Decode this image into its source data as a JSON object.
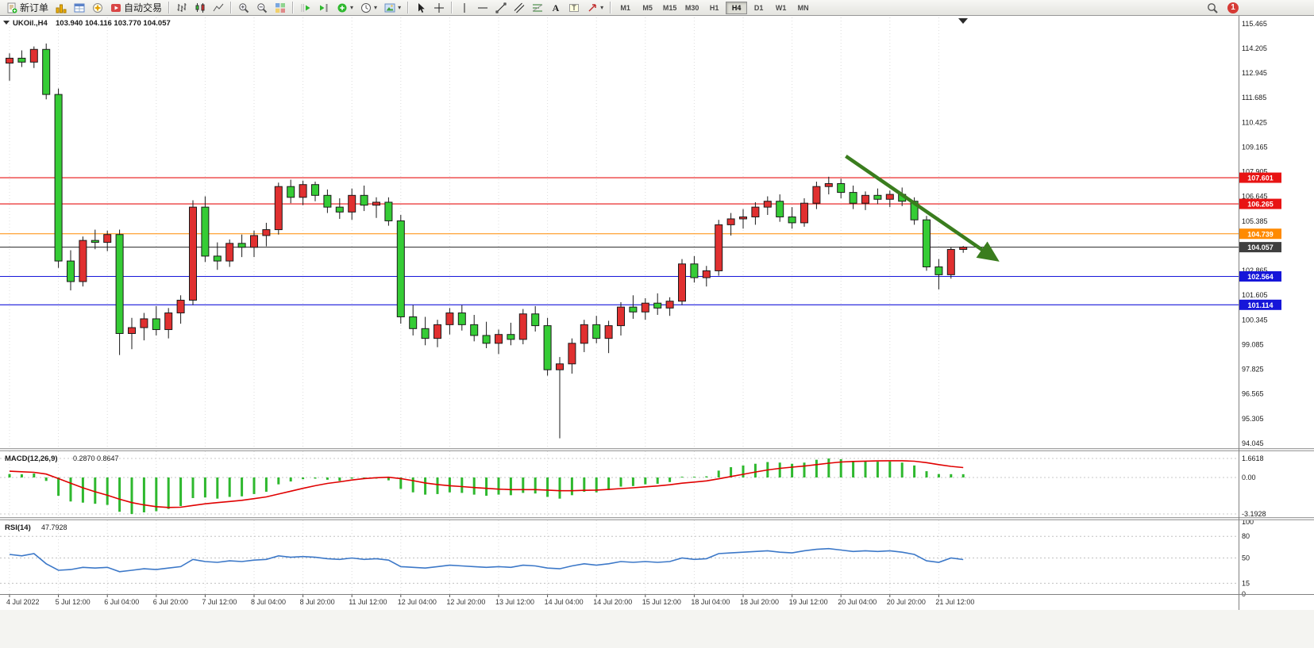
{
  "toolbar": {
    "new_order_label": "新订单",
    "auto_trading_label": "自动交易",
    "timeframes": [
      "M1",
      "M5",
      "M15",
      "M30",
      "H1",
      "H4",
      "D1",
      "W1",
      "MN"
    ],
    "active_timeframe": "H4",
    "notification_count": "1"
  },
  "chart": {
    "symbol_title": "UKOil.,H4",
    "ohlc_text": "103.940 104.116 103.770 104.057",
    "up_color": "#e03030",
    "down_color": "#35cc35",
    "price_axis_labels": [
      "115.465",
      "114.205",
      "112.945",
      "111.685",
      "110.425",
      "109.165",
      "107.905",
      "106.645",
      "105.385",
      "104.125",
      "102.865",
      "101.605",
      "100.345",
      "99.085",
      "97.825",
      "96.565",
      "95.305",
      "94.045"
    ],
    "time_axis_labels": [
      "4 Jul 2022",
      "5 Jul 12:00",
      "6 Jul 04:00",
      "6 Jul 20:00",
      "7 Jul 12:00",
      "8 Jul 04:00",
      "8 Jul 20:00",
      "11 Jul 12:00",
      "12 Jul 04:00",
      "12 Jul 20:00",
      "13 Jul 12:00",
      "14 Jul 04:00",
      "14 Jul 20:00",
      "15 Jul 12:00",
      "18 Jul 04:00",
      "18 Jul 20:00",
      "19 Jul 12:00",
      "20 Jul 04:00",
      "20 Jul 20:00",
      "21 Jul 12:00"
    ],
    "levels": [
      {
        "value": 107.601,
        "label": "107.601",
        "color": "#e81414",
        "is_bid": false
      },
      {
        "value": 106.265,
        "label": "106.265",
        "color": "#e81414",
        "is_bid": false
      },
      {
        "value": 104.739,
        "label": "104.739",
        "color": "#ff8a00",
        "is_bid": false
      },
      {
        "value": 104.057,
        "label": "104.057",
        "color": "#3f3f3f",
        "is_bid": true
      },
      {
        "value": 102.564,
        "label": "102.564",
        "color": "#1616d9",
        "is_bid": false
      },
      {
        "value": 101.114,
        "label": "101.114",
        "color": "#1616d9",
        "is_bid": false
      }
    ],
    "arrow": {
      "from_bar": 68.4,
      "from_price": 108.7,
      "to_bar": 80.6,
      "to_price": 103.47,
      "color": "#3a7d1e"
    },
    "candles": [
      [
        113.45,
        113.95,
        112.55,
        113.7
      ],
      [
        113.7,
        114.1,
        113.25,
        113.5
      ],
      [
        113.5,
        114.3,
        113.2,
        114.15
      ],
      [
        114.15,
        114.45,
        111.6,
        111.85
      ],
      [
        111.85,
        112.15,
        103.0,
        103.35
      ],
      [
        103.35,
        103.9,
        101.85,
        102.3
      ],
      [
        102.3,
        104.6,
        102.05,
        104.4
      ],
      [
        104.4,
        104.95,
        103.95,
        104.3
      ],
      [
        104.3,
        104.9,
        103.85,
        104.7
      ],
      [
        104.7,
        104.95,
        98.55,
        99.65
      ],
      [
        99.65,
        100.45,
        98.85,
        99.95
      ],
      [
        99.95,
        100.7,
        99.3,
        100.4
      ],
      [
        100.4,
        101.05,
        99.55,
        99.85
      ],
      [
        99.85,
        100.95,
        99.4,
        100.7
      ],
      [
        100.7,
        101.6,
        100.15,
        101.35
      ],
      [
        101.35,
        106.45,
        101.1,
        106.1
      ],
      [
        106.1,
        106.65,
        103.3,
        103.6
      ],
      [
        103.6,
        104.3,
        102.9,
        103.35
      ],
      [
        103.35,
        104.45,
        103.05,
        104.25
      ],
      [
        104.25,
        104.7,
        103.55,
        104.05
      ],
      [
        104.05,
        104.9,
        103.55,
        104.65
      ],
      [
        104.65,
        105.3,
        104.1,
        104.95
      ],
      [
        104.95,
        107.35,
        104.7,
        107.15
      ],
      [
        107.15,
        107.5,
        106.3,
        106.6
      ],
      [
        106.6,
        107.45,
        106.2,
        107.25
      ],
      [
        107.25,
        107.4,
        106.4,
        106.7
      ],
      [
        106.7,
        107.0,
        105.8,
        106.1
      ],
      [
        106.1,
        106.55,
        105.5,
        105.85
      ],
      [
        105.85,
        107.05,
        105.45,
        106.7
      ],
      [
        106.7,
        107.2,
        105.9,
        106.2
      ],
      [
        106.2,
        106.6,
        105.55,
        106.35
      ],
      [
        106.35,
        106.6,
        105.15,
        105.4
      ],
      [
        105.4,
        105.7,
        100.15,
        100.5
      ],
      [
        100.5,
        101.1,
        99.55,
        99.9
      ],
      [
        99.9,
        100.5,
        99.05,
        99.4
      ],
      [
        99.4,
        100.35,
        98.95,
        100.1
      ],
      [
        100.1,
        100.95,
        99.6,
        100.7
      ],
      [
        100.7,
        101.1,
        99.8,
        100.1
      ],
      [
        100.1,
        100.6,
        99.25,
        99.55
      ],
      [
        99.55,
        100.25,
        98.9,
        99.15
      ],
      [
        99.15,
        99.85,
        98.6,
        99.6
      ],
      [
        99.6,
        100.2,
        99.05,
        99.35
      ],
      [
        99.35,
        100.9,
        99.1,
        100.65
      ],
      [
        100.65,
        101.05,
        99.75,
        100.05
      ],
      [
        100.05,
        100.45,
        97.5,
        97.8
      ],
      [
        97.8,
        98.45,
        94.3,
        98.1
      ],
      [
        98.1,
        99.4,
        97.6,
        99.15
      ],
      [
        99.15,
        100.35,
        98.7,
        100.1
      ],
      [
        100.1,
        100.55,
        99.15,
        99.4
      ],
      [
        99.4,
        100.3,
        98.65,
        100.05
      ],
      [
        100.05,
        101.25,
        99.55,
        101.0
      ],
      [
        101.0,
        101.6,
        100.4,
        100.75
      ],
      [
        100.75,
        101.45,
        100.35,
        101.2
      ],
      [
        101.2,
        101.7,
        100.6,
        100.95
      ],
      [
        100.95,
        101.5,
        100.55,
        101.3
      ],
      [
        101.3,
        103.45,
        101.1,
        103.2
      ],
      [
        103.2,
        103.6,
        102.25,
        102.5
      ],
      [
        102.5,
        103.1,
        102.05,
        102.85
      ],
      [
        102.85,
        105.45,
        102.6,
        105.2
      ],
      [
        105.2,
        105.8,
        104.65,
        105.5
      ],
      [
        105.5,
        106.0,
        105.0,
        105.6
      ],
      [
        105.6,
        106.35,
        105.2,
        106.1
      ],
      [
        106.1,
        106.65,
        105.7,
        106.4
      ],
      [
        106.4,
        106.75,
        105.35,
        105.6
      ],
      [
        105.6,
        106.1,
        105.0,
        105.3
      ],
      [
        105.3,
        106.55,
        105.1,
        106.3
      ],
      [
        106.3,
        107.4,
        106.0,
        107.15
      ],
      [
        107.15,
        107.65,
        106.75,
        107.3
      ],
      [
        107.3,
        107.55,
        106.55,
        106.85
      ],
      [
        106.85,
        107.2,
        106.0,
        106.3
      ],
      [
        106.3,
        106.9,
        105.95,
        106.7
      ],
      [
        106.7,
        107.05,
        106.25,
        106.5
      ],
      [
        106.5,
        106.95,
        106.1,
        106.75
      ],
      [
        106.75,
        107.1,
        106.15,
        106.4
      ],
      [
        106.4,
        106.6,
        105.2,
        105.45
      ],
      [
        105.45,
        105.65,
        102.85,
        103.05
      ],
      [
        103.05,
        103.45,
        101.9,
        102.65
      ],
      [
        102.65,
        104.05,
        102.45,
        103.94
      ],
      [
        103.94,
        104.116,
        103.77,
        104.057
      ]
    ]
  },
  "macd": {
    "title": "MACD(12,26,9)",
    "values_text": "0.2870 0.8647",
    "axis_labels": [
      "1.6618",
      "0.00",
      "-3.1928"
    ],
    "axis_values": [
      1.6618,
      0,
      -3.1928
    ],
    "histogram_color": "#2eb82e",
    "signal_color": "#e00000",
    "histogram": [
      0.3,
      0.28,
      0.35,
      -0.3,
      -1.6,
      -2.1,
      -2.2,
      -2.3,
      -2.4,
      -3.0,
      -3.19,
      -3.05,
      -2.95,
      -2.75,
      -2.5,
      -1.8,
      -1.75,
      -1.85,
      -1.7,
      -1.65,
      -1.45,
      -1.25,
      -0.6,
      -0.35,
      -0.15,
      -0.1,
      -0.2,
      -0.3,
      -0.1,
      -0.1,
      -0.1,
      -0.25,
      -1.0,
      -1.3,
      -1.5,
      -1.45,
      -1.3,
      -1.35,
      -1.5,
      -1.6,
      -1.5,
      -1.55,
      -1.35,
      -1.4,
      -1.7,
      -1.85,
      -1.55,
      -1.25,
      -1.3,
      -1.1,
      -0.8,
      -0.75,
      -0.6,
      -0.55,
      -0.4,
      0.05,
      0.0,
      0.1,
      0.6,
      0.9,
      1.05,
      1.2,
      1.35,
      1.3,
      1.2,
      1.3,
      1.55,
      1.66,
      1.6,
      1.45,
      1.4,
      1.38,
      1.4,
      1.3,
      1.05,
      0.55,
      0.3,
      0.29,
      0.287
    ],
    "signal": [
      0.55,
      0.5,
      0.45,
      0.3,
      -0.1,
      -0.5,
      -0.9,
      -1.25,
      -1.55,
      -1.9,
      -2.2,
      -2.4,
      -2.55,
      -2.62,
      -2.6,
      -2.45,
      -2.3,
      -2.2,
      -2.1,
      -2.0,
      -1.85,
      -1.7,
      -1.45,
      -1.2,
      -0.95,
      -0.72,
      -0.52,
      -0.38,
      -0.22,
      -0.1,
      -0.02,
      0.02,
      -0.1,
      -0.28,
      -0.48,
      -0.62,
      -0.72,
      -0.8,
      -0.88,
      -0.95,
      -1.02,
      -1.06,
      -1.06,
      -1.06,
      -1.1,
      -1.16,
      -1.16,
      -1.12,
      -1.1,
      -1.05,
      -0.97,
      -0.9,
      -0.82,
      -0.74,
      -0.64,
      -0.5,
      -0.4,
      -0.3,
      -0.12,
      0.08,
      0.28,
      0.48,
      0.66,
      0.8,
      0.9,
      1.0,
      1.12,
      1.25,
      1.35,
      1.4,
      1.43,
      1.45,
      1.46,
      1.46,
      1.42,
      1.3,
      1.12,
      0.97,
      0.8647
    ]
  },
  "rsi": {
    "title": "RSI(14)",
    "value_text": "47.7928",
    "axis_labels": [
      "100",
      "80",
      "50",
      "15",
      "0"
    ],
    "axis_values": [
      100,
      80,
      50,
      15,
      0
    ],
    "level_lines": [
      80,
      50,
      15
    ],
    "line_color": "#3c78c8",
    "values": [
      55,
      53,
      56,
      42,
      33,
      34,
      37,
      36,
      37,
      31,
      33,
      35,
      34,
      36,
      38,
      48,
      45,
      44,
      46,
      45,
      47,
      48,
      53,
      51,
      52,
      51,
      49,
      48,
      50,
      48,
      49,
      47,
      38,
      37,
      36,
      38,
      40,
      39,
      38,
      37,
      38,
      37,
      40,
      39,
      36,
      35,
      39,
      42,
      40,
      42,
      45,
      44,
      45,
      44,
      45,
      50,
      48,
      49,
      56,
      57,
      58,
      59,
      60,
      58,
      57,
      60,
      62,
      63,
      61,
      59,
      60,
      59,
      60,
      58,
      55,
      46,
      44,
      50,
      47.79
    ]
  }
}
